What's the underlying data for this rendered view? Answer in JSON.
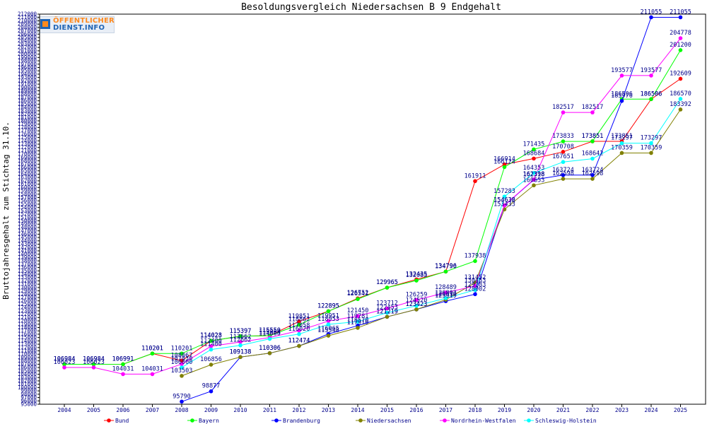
{
  "chart_data": {
    "type": "line",
    "title": "Besoldungsvergleich Niedersachsen B 9 Endgehalt",
    "ylabel": "Bruttojahresgehalt zum Stichtag 31.10.",
    "xlabel": "",
    "logo": {
      "line1": "ÖFFENTLICHER",
      "line2": "DIENST.INFO"
    },
    "x": [
      "2004",
      "2005",
      "2006",
      "2007",
      "2008",
      "2009",
      "2010",
      "2011",
      "2012",
      "2013",
      "2014",
      "2015",
      "2016",
      "2017",
      "2018",
      "2019",
      "2020",
      "2021",
      "2022",
      "2023",
      "2024",
      "2025"
    ],
    "ylim": [
      95000,
      212000
    ],
    "ytick_step": 1000,
    "grid": false,
    "legend_position": "bottom",
    "series": [
      {
        "name": "Bund",
        "color": "#ff0000",
        "values": [
          106984,
          106984,
          106991,
          110201,
          108067,
          114023,
          115397,
          115550,
          119851,
          122895,
          126752,
          129965,
          132435,
          134790,
          161911,
          166914,
          168684,
          170708,
          173851,
          173851,
          186506,
          192609
        ]
      },
      {
        "name": "Bayern",
        "color": "#00ff00",
        "values": [
          106984,
          106984,
          106991,
          110201,
          110201,
          114028,
          115397,
          115550,
          118862,
          122895,
          126541,
          129965,
          132085,
          134796,
          137938,
          166124,
          171435,
          173833,
          173851,
          186506,
          186506,
          201200
        ]
      },
      {
        "name": "Brandenburg",
        "color": "#0000ff",
        "values": [
          null,
          null,
          null,
          null,
          95790,
          98877,
          109138,
          110306,
          112474,
          116065,
          118570,
          121219,
          123423,
          125919,
          128002,
          154632,
          162318,
          163724,
          163724,
          185976,
          211055,
          211055
        ]
      },
      {
        "name": "Niedersachsen",
        "color": "#808000",
        "values": [
          null,
          null,
          null,
          null,
          103503,
          106856,
          109138,
          110306,
          112474,
          115548,
          117910,
          121219,
          123423,
          126339,
          131452,
          153433,
          160653,
          162598,
          162598,
          170359,
          170359,
          183392
        ]
      },
      {
        "name": "Nordrhein-Westfalen",
        "color": "#ff00ff",
        "values": [
          106023,
          106023,
          104031,
          104031,
          107030,
          112400,
          113662,
          115004,
          117058,
          119951,
          121450,
          123712,
          126259,
          128489,
          130453,
          154636,
          162398,
          182517,
          182517,
          193577,
          193577,
          204778
        ]
      },
      {
        "name": "Schleswig-Holstein",
        "color": "#00ffff",
        "values": [
          null,
          null,
          null,
          null,
          106000,
          111400,
          112662,
          114600,
          116020,
          118953,
          119781,
          122453,
          124520,
          126803,
          129283,
          157283,
          164353,
          167651,
          168642,
          173297,
          173297,
          186570
        ]
      }
    ]
  }
}
